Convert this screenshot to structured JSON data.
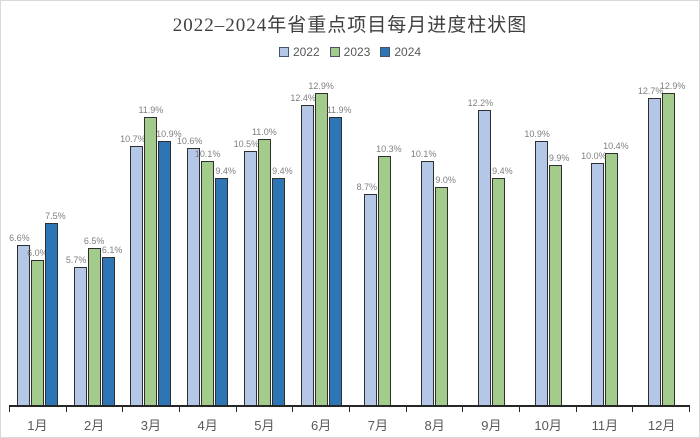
{
  "title": "2022–2024年省重点项目每月进度柱状图",
  "chart_data": {
    "type": "bar",
    "title": "2022–2024年省重点项目每月进度柱状图",
    "categories": [
      "1月",
      "2月",
      "3月",
      "4月",
      "5月",
      "6月",
      "7月",
      "8月",
      "9月",
      "10月",
      "11月",
      "12月"
    ],
    "series": [
      {
        "name": "2022",
        "color": "#B4C7E7",
        "values": [
          6.6,
          5.7,
          10.7,
          10.6,
          10.5,
          12.4,
          8.7,
          10.1,
          12.2,
          10.9,
          10.0,
          12.7
        ]
      },
      {
        "name": "2023",
        "color": "#A3CB8C",
        "values": [
          6.0,
          6.5,
          11.9,
          10.1,
          11.0,
          12.9,
          10.3,
          9.0,
          9.4,
          9.9,
          10.4,
          12.9
        ]
      },
      {
        "name": "2024",
        "color": "#2E75B6",
        "values": [
          7.5,
          6.1,
          10.9,
          9.4,
          9.4,
          11.9,
          null,
          null,
          null,
          null,
          null,
          null
        ]
      }
    ],
    "value_suffix": "%",
    "value_label_format": "one_decimal",
    "ylim": [
      0,
      14
    ],
    "grid": false,
    "legend_position": "top",
    "data_labels": true,
    "axis_color": "#262626",
    "label_color": "#7f7f7f",
    "category_label_color": "#595959"
  }
}
